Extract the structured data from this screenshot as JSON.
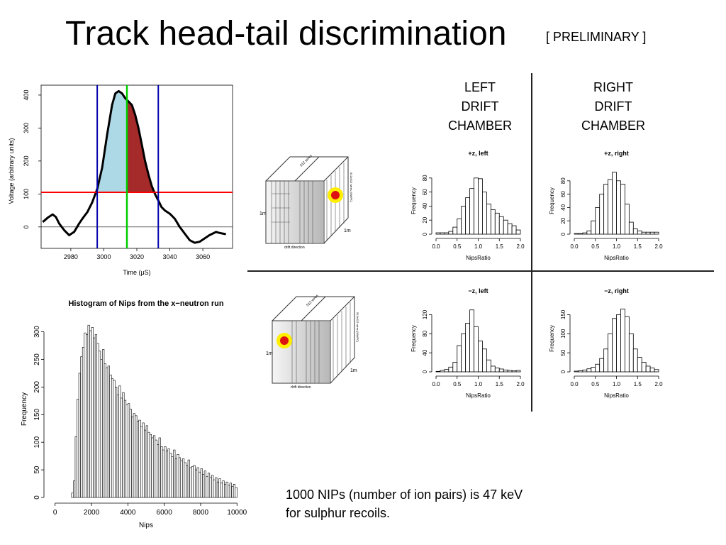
{
  "title": "Track head-tail discrimination",
  "preliminary": "[ PRELIMINARY ]",
  "left_label": [
    "LEFT",
    "DRIFT",
    "CHAMBER"
  ],
  "right_label": [
    "RIGHT",
    "DRIFT",
    "CHAMBER"
  ],
  "caption": [
    "1000 NIPs (number of ion pairs) is 47 keV",
    "for sulphur recoils."
  ],
  "diagram_text": {
    "wires": "512 wires",
    "wires_side": "512x512 wires (MWPC)",
    "dim": "1m",
    "drift": "drift direction"
  },
  "colors": {
    "head_fill": "#add8e6",
    "tail_fill": "#a52a2a",
    "threshold": "#ff0000",
    "mid": "#00cc00",
    "bounds": "#0000aa",
    "spot_outer": "#ffee00",
    "spot_inner": "#dd1111"
  },
  "chart_data": [
    {
      "id": "waveform",
      "type": "line",
      "xlabel": "Time (μS)",
      "ylabel": "Voltage (arbitrary units)",
      "xlim": [
        2962,
        3078
      ],
      "ylim": [
        -65,
        430
      ],
      "xticks": [
        2980,
        3000,
        3020,
        3040,
        3060
      ],
      "yticks": [
        0,
        100,
        200,
        300,
        400
      ],
      "x": [
        2963,
        2966,
        2969,
        2971,
        2973,
        2976,
        2979,
        2982,
        2985,
        2987,
        2990,
        2993,
        2996,
        2999,
        3002,
        3005,
        3007,
        3009,
        3011,
        3013,
        3015,
        3017,
        3019,
        3021,
        3023,
        3025,
        3027,
        3029,
        3031,
        3033,
        3035,
        3037,
        3040,
        3043,
        3046,
        3049,
        3052,
        3055,
        3058,
        3061,
        3064,
        3066,
        3068,
        3070,
        3072,
        3074
      ],
      "y": [
        15,
        28,
        38,
        30,
        10,
        -10,
        -25,
        -15,
        10,
        25,
        45,
        75,
        115,
        180,
        280,
        370,
        405,
        412,
        405,
        390,
        380,
        370,
        340,
        300,
        250,
        200,
        160,
        125,
        100,
        80,
        60,
        50,
        40,
        25,
        0,
        -20,
        -40,
        -48,
        -45,
        -35,
        -25,
        -20,
        -15,
        -18,
        -20,
        -22
      ],
      "threshold": 105,
      "mid_line": 3014,
      "bounds": [
        2996,
        3033
      ]
    },
    {
      "id": "nips-hist",
      "type": "bar",
      "title": "Histogram of Nips from the x−neutron run",
      "xlabel": "Nips",
      "ylabel": "Frequency",
      "xlim": [
        -300,
        10300
      ],
      "ylim": [
        0,
        320
      ],
      "xticks": [
        0,
        2000,
        4000,
        6000,
        8000,
        10000
      ],
      "yticks": [
        0,
        50,
        100,
        150,
        200,
        250,
        300
      ],
      "bin_width": 100,
      "x_start": 0,
      "values": [
        0,
        0,
        0,
        0,
        0,
        0,
        0,
        0,
        0,
        8,
        30,
        110,
        178,
        225,
        255,
        272,
        298,
        295,
        312,
        302,
        308,
        289,
        295,
        279,
        265,
        250,
        268,
        242,
        235,
        238,
        222,
        215,
        212,
        200,
        186,
        202,
        180,
        190,
        176,
        168,
        170,
        160,
        146,
        152,
        148,
        138,
        140,
        128,
        135,
        122,
        130,
        118,
        114,
        108,
        112,
        104,
        96,
        108,
        92,
        86,
        92,
        84,
        88,
        80,
        74,
        86,
        70,
        78,
        72,
        66,
        70,
        63,
        58,
        68,
        54,
        56,
        58,
        50,
        54,
        46,
        52,
        42,
        48,
        38,
        44,
        36,
        40,
        32,
        36,
        28,
        34,
        26,
        30,
        24,
        28,
        22,
        26,
        20,
        24,
        18
      ]
    },
    {
      "id": "pz-left",
      "type": "bar",
      "title": "+z, left",
      "xlabel": "NipsRatio",
      "ylabel": "Frequency",
      "xlim": [
        0,
        2
      ],
      "ylim": [
        0,
        95
      ],
      "xticks": [
        0.0,
        0.5,
        1.0,
        1.5,
        2.0
      ],
      "yticks": [
        0,
        20,
        40,
        60,
        80
      ],
      "bin_width": 0.1,
      "x_start": 0.0,
      "values": [
        2,
        2,
        2,
        4,
        10,
        22,
        40,
        52,
        65,
        80,
        79,
        60,
        43,
        35,
        30,
        25,
        20,
        15,
        12,
        6
      ]
    },
    {
      "id": "pz-right",
      "type": "bar",
      "title": "+z, right",
      "xlabel": "NipsRatio",
      "ylabel": "Frequency",
      "xlim": [
        0,
        2
      ],
      "ylim": [
        0,
        100
      ],
      "xticks": [
        0.0,
        0.5,
        1.0,
        1.5,
        2.0
      ],
      "yticks": [
        0,
        20,
        40,
        60,
        80
      ],
      "bin_width": 0.1,
      "x_start": 0.0,
      "values": [
        1,
        1,
        2,
        5,
        20,
        40,
        60,
        75,
        82,
        93,
        80,
        75,
        45,
        18,
        8,
        5,
        3,
        3,
        3,
        3
      ]
    },
    {
      "id": "mz-left",
      "type": "bar",
      "title": "−z, left",
      "xlabel": "NipsRatio",
      "ylabel": "Frequency",
      "xlim": [
        0,
        2
      ],
      "ylim": [
        0,
        140
      ],
      "xticks": [
        0.0,
        0.5,
        1.0,
        1.5,
        2.0
      ],
      "yticks": [
        0,
        40,
        80,
        120
      ],
      "bin_width": 0.1,
      "x_start": 0.0,
      "values": [
        1,
        3,
        5,
        10,
        20,
        55,
        80,
        102,
        130,
        95,
        65,
        48,
        25,
        12,
        8,
        6,
        4,
        3,
        2,
        3
      ]
    },
    {
      "id": "mz-right",
      "type": "bar",
      "title": "−z, right",
      "xlabel": "NipsRatio",
      "ylabel": "Frequency",
      "xlim": [
        0,
        2
      ],
      "ylim": [
        0,
        175
      ],
      "xticks": [
        0.0,
        0.5,
        1.0,
        1.5,
        2.0
      ],
      "yticks": [
        0,
        50,
        100,
        150
      ],
      "bin_width": 0.1,
      "x_start": 0.0,
      "values": [
        2,
        3,
        5,
        8,
        12,
        20,
        35,
        60,
        100,
        140,
        150,
        165,
        145,
        100,
        60,
        38,
        25,
        15,
        10,
        6
      ]
    }
  ]
}
